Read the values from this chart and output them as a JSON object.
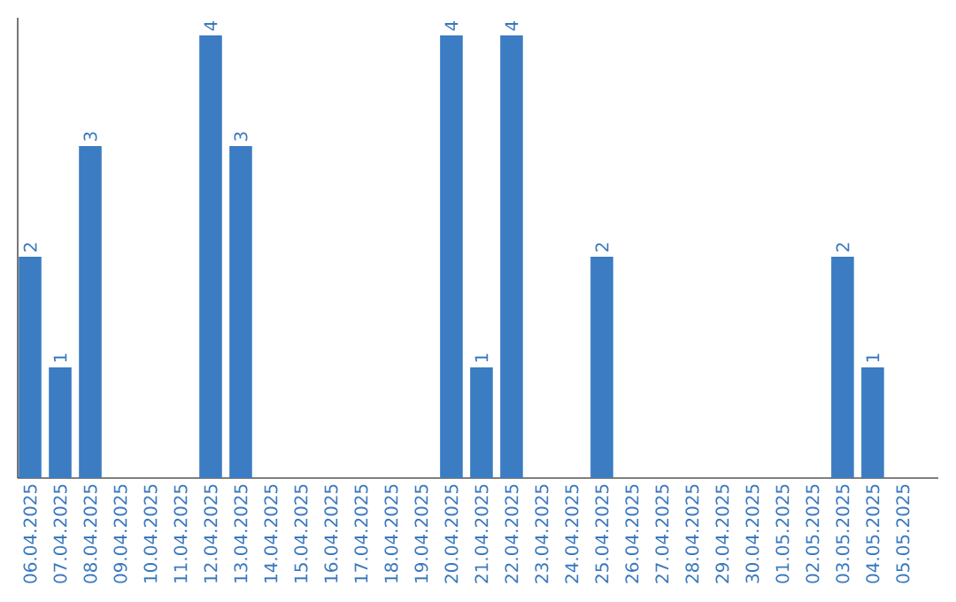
{
  "chart_data": {
    "type": "bar",
    "categories": [
      "06.04.2025",
      "07.04.2025",
      "08.04.2025",
      "09.04.2025",
      "10.04.2025",
      "11.04.2025",
      "12.04.2025",
      "13.04.2025",
      "14.04.2025",
      "15.04.2025",
      "16.04.2025",
      "17.04.2025",
      "18.04.2025",
      "19.04.2025",
      "20.04.2025",
      "21.04.2025",
      "22.04.2025",
      "23.04.2025",
      "24.04.2025",
      "25.04.2025",
      "26.04.2025",
      "27.04.2025",
      "28.04.2025",
      "29.04.2025",
      "30.04.2025",
      "01.05.2025",
      "02.05.2025",
      "03.05.2025",
      "04.05.2025",
      "05.05.2025"
    ],
    "values": [
      2,
      1,
      3,
      0,
      0,
      0,
      4,
      3,
      0,
      0,
      0,
      0,
      0,
      0,
      4,
      1,
      4,
      0,
      0,
      2,
      0,
      0,
      0,
      0,
      0,
      0,
      0,
      2,
      1,
      0
    ],
    "value_labels": [
      "2",
      "1",
      "3",
      null,
      null,
      null,
      "4",
      "3",
      null,
      null,
      null,
      null,
      null,
      null,
      "4",
      "1",
      "4",
      null,
      null,
      "2",
      null,
      null,
      null,
      null,
      null,
      null,
      null,
      "2",
      "1",
      null
    ],
    "color": "#3b7cc2"
  }
}
